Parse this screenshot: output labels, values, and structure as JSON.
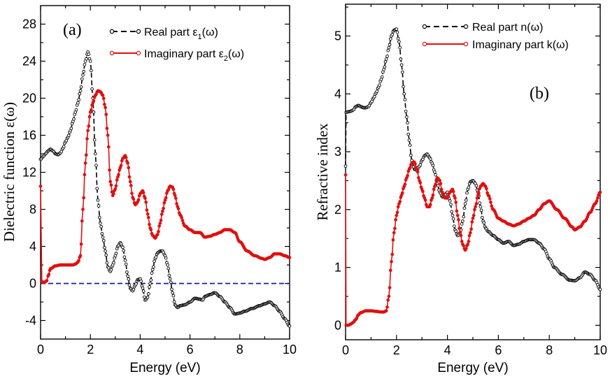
{
  "chart_data": [
    {
      "type": "line",
      "panel_label": "(a)",
      "xlabel": "Energy (eV)",
      "ylabel": "Dielectric function ε(ω)",
      "xlim": [
        0,
        10
      ],
      "ylim": [
        -6,
        30
      ],
      "xticks": [
        0,
        2,
        4,
        6,
        8,
        10
      ],
      "yticks": [
        -4,
        0,
        4,
        8,
        12,
        16,
        20,
        24,
        28
      ],
      "grid": false,
      "legend_position": "top-right",
      "reference_line": {
        "y": 0,
        "color": "#1a1aa8",
        "style": "dashed"
      },
      "series": [
        {
          "name": "Real part ε1(ω)",
          "legend_main": "Real part ε",
          "legend_sub": "1",
          "legend_suffix": "(ω)",
          "color": "#000000",
          "dash": "dashed",
          "marker": "open-circle",
          "x": [
            0,
            0.1,
            0.2,
            0.3,
            0.4,
            0.5,
            0.6,
            0.7,
            0.8,
            0.9,
            1.0,
            1.1,
            1.2,
            1.3,
            1.4,
            1.5,
            1.6,
            1.7,
            1.8,
            1.9,
            2.0,
            2.1,
            2.2,
            2.3,
            2.4,
            2.5,
            2.6,
            2.7,
            2.8,
            2.9,
            3.0,
            3.1,
            3.2,
            3.3,
            3.4,
            3.5,
            3.6,
            3.7,
            3.8,
            3.9,
            4.0,
            4.1,
            4.2,
            4.3,
            4.4,
            4.5,
            4.6,
            4.7,
            4.8,
            4.9,
            5.0,
            5.1,
            5.2,
            5.3,
            5.4,
            5.5,
            5.6,
            5.8,
            6.0,
            6.2,
            6.4,
            6.5,
            6.6,
            6.8,
            7.0,
            7.2,
            7.4,
            7.6,
            7.8,
            8.0,
            8.2,
            8.5,
            8.8,
            9.0,
            9.2,
            9.4,
            9.6,
            9.8,
            10.0
          ],
          "y": [
            13.4,
            13.7,
            14.0,
            14.3,
            14.5,
            14.3,
            14.0,
            13.9,
            14.1,
            14.6,
            15.3,
            15.8,
            16.5,
            17.5,
            18.5,
            19.5,
            20.8,
            22.5,
            24.0,
            25.0,
            24.0,
            20.0,
            14.0,
            9.0,
            6.5,
            5.0,
            3.5,
            1.8,
            1.3,
            2.0,
            3.0,
            4.0,
            4.4,
            3.9,
            2.5,
            0.8,
            -0.5,
            -0.8,
            -0.2,
            0.4,
            0.5,
            -0.5,
            -1.8,
            -1.5,
            0.0,
            1.5,
            2.7,
            3.3,
            3.5,
            3.5,
            3.0,
            2.0,
            0.5,
            -1.0,
            -2.3,
            -2.6,
            -2.4,
            -2.3,
            -2.0,
            -1.6,
            -1.7,
            -1.8,
            -1.4,
            -1.2,
            -1.0,
            -1.4,
            -2.0,
            -2.6,
            -3.3,
            -3.2,
            -3.0,
            -2.7,
            -2.4,
            -2.2,
            -2.0,
            -2.4,
            -3.0,
            -3.8,
            -4.6
          ]
        },
        {
          "name": "Imaginary part ε2(ω)",
          "legend_main": "Imaginary part ε",
          "legend_sub": "2",
          "legend_suffix": "(ω)",
          "color": "#e01010",
          "dash": "solid",
          "marker": "filled-circle",
          "x": [
            0,
            0.05,
            0.15,
            0.25,
            0.3,
            0.4,
            0.6,
            0.8,
            1.0,
            1.2,
            1.3,
            1.4,
            1.5,
            1.6,
            1.7,
            1.8,
            1.9,
            2.0,
            2.1,
            2.2,
            2.3,
            2.4,
            2.5,
            2.6,
            2.7,
            2.8,
            2.9,
            3.0,
            3.1,
            3.2,
            3.3,
            3.4,
            3.5,
            3.6,
            3.7,
            3.8,
            3.9,
            4.0,
            4.1,
            4.2,
            4.3,
            4.4,
            4.5,
            4.6,
            4.7,
            4.8,
            4.9,
            5.0,
            5.1,
            5.2,
            5.3,
            5.4,
            5.5,
            5.6,
            5.8,
            6.0,
            6.2,
            6.4,
            6.6,
            6.8,
            7.0,
            7.2,
            7.4,
            7.6,
            7.8,
            8.0,
            8.3,
            8.6,
            8.9,
            9.0,
            9.2,
            9.4,
            9.6,
            9.8,
            10.0
          ],
          "y": [
            10.5,
            0.2,
            0.1,
            0.3,
            0.8,
            1.6,
            1.9,
            2.0,
            2.0,
            2.0,
            2.0,
            2.1,
            2.3,
            3.0,
            8.0,
            13.0,
            16.5,
            18.5,
            19.5,
            20.3,
            20.8,
            20.7,
            20.3,
            19.0,
            16.0,
            11.0,
            9.5,
            10.2,
            11.5,
            12.5,
            13.5,
            13.8,
            13.0,
            11.0,
            9.3,
            8.5,
            8.8,
            9.7,
            10.0,
            9.2,
            7.5,
            6.0,
            5.2,
            4.9,
            5.3,
            6.5,
            7.8,
            9.0,
            10.0,
            10.5,
            10.4,
            9.5,
            8.3,
            7.4,
            6.2,
            5.8,
            5.5,
            5.5,
            5.0,
            5.1,
            5.3,
            5.5,
            5.8,
            5.8,
            5.5,
            4.5,
            3.5,
            3.0,
            2.7,
            2.6,
            2.8,
            3.2,
            3.2,
            3.0,
            2.8
          ]
        }
      ]
    },
    {
      "type": "line",
      "panel_label": "(b)",
      "xlabel": "Energy (eV)",
      "ylabel": "Refractive index",
      "xlim": [
        0,
        10
      ],
      "ylim": [
        -0.25,
        5.55
      ],
      "xticks": [
        0,
        2,
        4,
        6,
        8,
        10
      ],
      "yticks": [
        0,
        1,
        2,
        3,
        4,
        5
      ],
      "grid": false,
      "legend_position": "top-right",
      "series": [
        {
          "name": "Real part n(ω)",
          "color": "#000000",
          "dash": "dashed",
          "marker": "open-circle",
          "x": [
            0,
            0.02,
            0.1,
            0.2,
            0.3,
            0.4,
            0.5,
            0.6,
            0.7,
            0.8,
            0.9,
            1.0,
            1.1,
            1.2,
            1.3,
            1.4,
            1.5,
            1.6,
            1.7,
            1.8,
            1.9,
            2.0,
            2.1,
            2.2,
            2.3,
            2.4,
            2.5,
            2.6,
            2.7,
            2.8,
            2.9,
            3.0,
            3.1,
            3.2,
            3.3,
            3.4,
            3.5,
            3.6,
            3.7,
            3.8,
            3.9,
            4.0,
            4.1,
            4.2,
            4.3,
            4.4,
            4.5,
            4.6,
            4.7,
            4.8,
            4.9,
            5.0,
            5.1,
            5.2,
            5.3,
            5.4,
            5.5,
            5.6,
            5.8,
            6.0,
            6.2,
            6.4,
            6.6,
            6.8,
            7.0,
            7.2,
            7.4,
            7.6,
            7.8,
            8.0,
            8.2,
            8.5,
            8.8,
            9.0,
            9.2,
            9.4,
            9.6,
            9.8,
            10.0
          ],
          "y": [
            2.75,
            3.68,
            3.69,
            3.7,
            3.72,
            3.78,
            3.8,
            3.78,
            3.76,
            3.76,
            3.78,
            3.85,
            3.93,
            4.02,
            4.12,
            4.25,
            4.42,
            4.6,
            4.8,
            5.0,
            5.1,
            5.12,
            4.9,
            4.5,
            4.0,
            3.6,
            3.2,
            2.85,
            2.7,
            2.68,
            2.75,
            2.85,
            2.93,
            2.96,
            2.9,
            2.8,
            2.65,
            2.45,
            2.3,
            2.22,
            2.25,
            2.3,
            2.15,
            1.9,
            1.65,
            1.55,
            1.6,
            1.8,
            2.1,
            2.35,
            2.48,
            2.5,
            2.45,
            2.3,
            2.05,
            1.8,
            1.68,
            1.62,
            1.55,
            1.48,
            1.42,
            1.45,
            1.38,
            1.4,
            1.45,
            1.48,
            1.48,
            1.42,
            1.32,
            1.15,
            1.0,
            0.88,
            0.78,
            0.77,
            0.82,
            0.92,
            0.88,
            0.78,
            0.62
          ]
        },
        {
          "name": "Imaginary part k(ω)",
          "color": "#e01010",
          "dash": "solid",
          "marker": "filled-circle",
          "x": [
            0,
            0.02,
            0.1,
            0.2,
            0.3,
            0.4,
            0.5,
            0.6,
            0.8,
            1.0,
            1.2,
            1.4,
            1.5,
            1.6,
            1.7,
            1.8,
            1.9,
            2.0,
            2.1,
            2.2,
            2.3,
            2.4,
            2.5,
            2.6,
            2.7,
            2.8,
            2.9,
            3.0,
            3.1,
            3.2,
            3.3,
            3.4,
            3.5,
            3.6,
            3.7,
            3.8,
            3.9,
            4.0,
            4.1,
            4.2,
            4.3,
            4.4,
            4.5,
            4.6,
            4.7,
            4.8,
            4.9,
            5.0,
            5.1,
            5.2,
            5.3,
            5.4,
            5.5,
            5.6,
            5.8,
            6.0,
            6.2,
            6.4,
            6.6,
            6.8,
            7.0,
            7.2,
            7.4,
            7.6,
            7.8,
            8.0,
            8.3,
            8.6,
            8.9,
            9.0,
            9.2,
            9.4,
            9.6,
            9.8,
            10.0
          ],
          "y": [
            2.6,
            0.0,
            0.0,
            0.02,
            0.05,
            0.1,
            0.18,
            0.22,
            0.25,
            0.25,
            0.24,
            0.23,
            0.23,
            0.25,
            0.5,
            1.1,
            1.6,
            1.9,
            2.1,
            2.25,
            2.4,
            2.55,
            2.7,
            2.8,
            2.82,
            2.7,
            2.5,
            2.35,
            2.2,
            2.05,
            2.05,
            2.2,
            2.4,
            2.55,
            2.5,
            2.3,
            2.2,
            2.2,
            2.3,
            2.35,
            2.2,
            1.9,
            1.6,
            1.4,
            1.3,
            1.4,
            1.6,
            1.85,
            2.05,
            2.25,
            2.4,
            2.45,
            2.4,
            2.25,
            2.0,
            1.85,
            1.8,
            1.75,
            1.72,
            1.75,
            1.8,
            1.85,
            1.9,
            2.0,
            2.1,
            2.15,
            2.0,
            1.85,
            1.7,
            1.65,
            1.7,
            1.8,
            1.95,
            2.1,
            2.3
          ]
        }
      ]
    }
  ]
}
